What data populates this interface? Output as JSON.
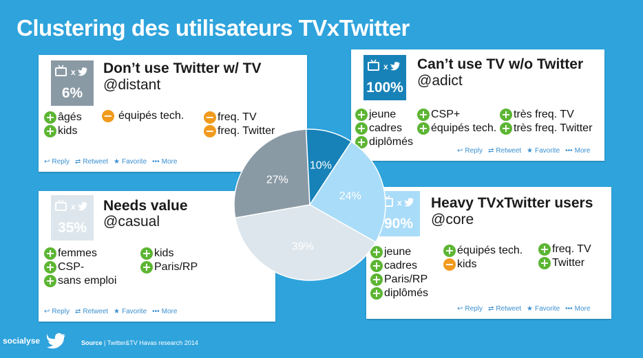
{
  "title": "Clustering des utilisateurs TVxTwitter",
  "colors": {
    "background": "#2ea3dc",
    "distant": "#8a9aa5",
    "adict": "#1782b8",
    "casual": "#dde6ec",
    "core": "#a9dcf8",
    "plus": "#5cb533",
    "minus": "#f19a1d"
  },
  "actions": {
    "reply": "Reply",
    "retweet": "Retweet",
    "favorite": "Favorite",
    "more": "More"
  },
  "cards": {
    "distant": {
      "pct": "6%",
      "title": "Don’t use Twitter w/ TV",
      "handle": "@distant",
      "traits": [
        {
          "sign": "+",
          "text": "âgés"
        },
        {
          "sign": "+",
          "text": "kids"
        },
        {
          "sign": "-",
          "text": "équipés tech."
        },
        {
          "sign": "-",
          "text": "freq. TV"
        },
        {
          "sign": "-",
          "text": "freq. Twitter"
        }
      ]
    },
    "adict": {
      "pct": "100%",
      "title": "Can’t use TV w/o Twitter",
      "handle": "@adict",
      "traits": [
        {
          "sign": "+",
          "text": "jeune"
        },
        {
          "sign": "+",
          "text": "cadres"
        },
        {
          "sign": "+",
          "text": "diplômés"
        },
        {
          "sign": "+",
          "text": "CSP+"
        },
        {
          "sign": "+",
          "text": "équipés tech."
        },
        {
          "sign": "+",
          "text": "très freq. TV"
        },
        {
          "sign": "+",
          "text": "très freq. Twitter"
        }
      ]
    },
    "casual": {
      "pct": "35%",
      "title": "Needs value",
      "handle": "@casual",
      "traits": [
        {
          "sign": "+",
          "text": "femmes"
        },
        {
          "sign": "+",
          "text": "CSP-"
        },
        {
          "sign": "+",
          "text": "sans emploi"
        },
        {
          "sign": "+",
          "text": "kids"
        },
        {
          "sign": "+",
          "text": "Paris/RP"
        }
      ]
    },
    "core": {
      "pct": "90%",
      "title": "Heavy TVxTwitter users",
      "handle": "@core",
      "traits": [
        {
          "sign": "+",
          "text": "jeune"
        },
        {
          "sign": "+",
          "text": "cadres"
        },
        {
          "sign": "+",
          "text": "Paris/RP"
        },
        {
          "sign": "+",
          "text": "diplômés"
        },
        {
          "sign": "+",
          "text": "équipés tech."
        },
        {
          "sign": "-",
          "text": "kids"
        },
        {
          "sign": "+",
          "text": "freq. TV"
        },
        {
          "sign": "+",
          "text": "Twitter"
        }
      ]
    }
  },
  "chart_data": {
    "type": "pie",
    "slices": [
      {
        "label": "27%",
        "value": 27,
        "color": "#8a9aa5"
      },
      {
        "label": "10%",
        "value": 10,
        "color": "#1782b8"
      },
      {
        "label": "24%",
        "value": 24,
        "color": "#a9dcf8"
      },
      {
        "label": "39%",
        "value": 39,
        "color": "#dde6ec"
      }
    ]
  },
  "footer": {
    "brand": "socialyse",
    "source_label": "Source",
    "source_text": " | Twitter&TV Havas research 2014"
  }
}
